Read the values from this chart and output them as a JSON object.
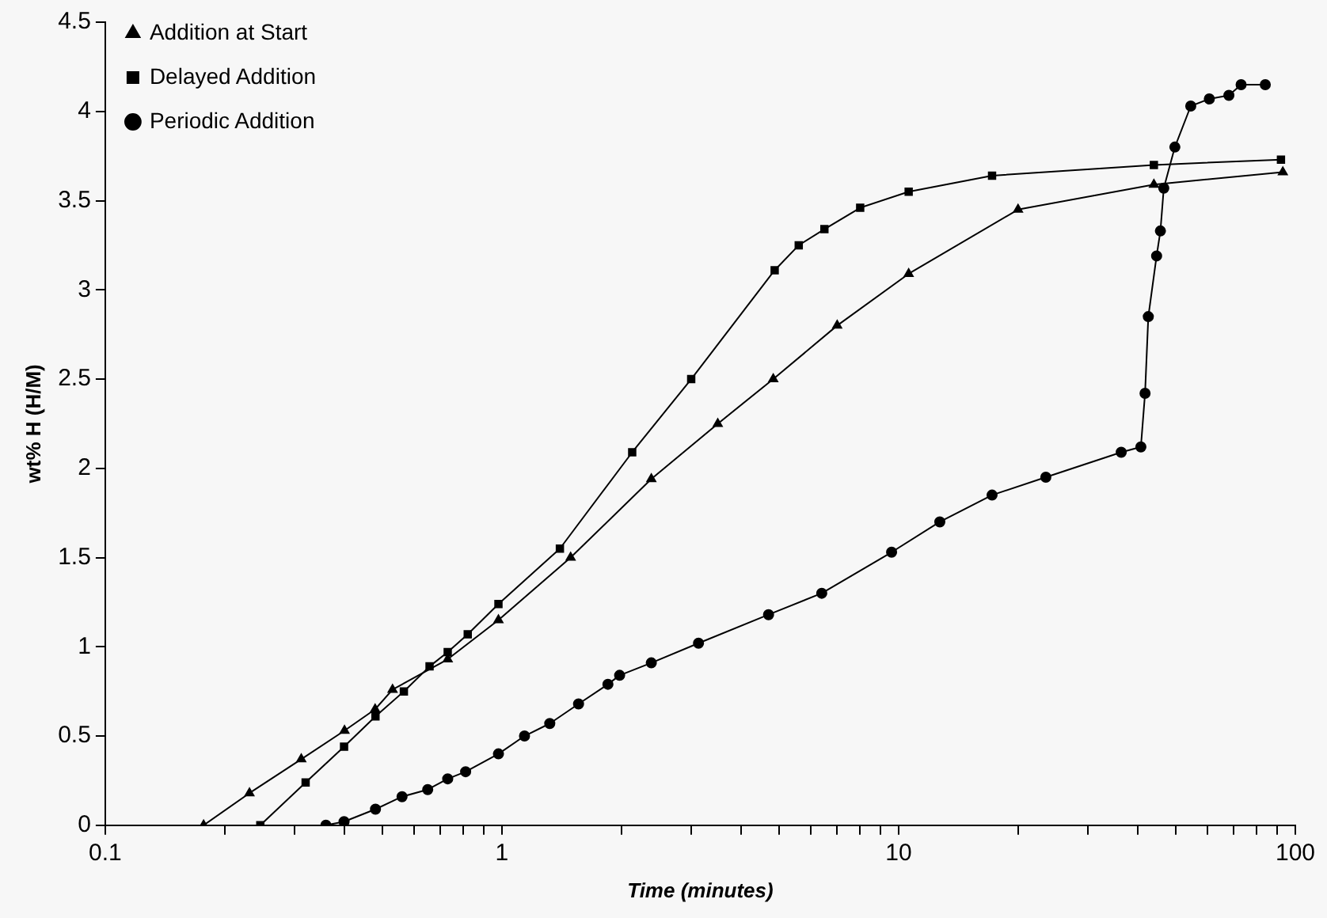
{
  "chart_data": {
    "type": "line",
    "xlabel": "Time (minutes)",
    "ylabel": "wt% H (H/M)",
    "log": "x",
    "grid": false,
    "legend": "top left",
    "line_style": "solid",
    "xlim": [
      0.1,
      100
    ],
    "ylim": [
      0,
      4.5
    ],
    "xticks": [
      0.1,
      {
        "value": 0.2,
        "label": null
      },
      {
        "value": 0.3,
        "label": null
      },
      {
        "value": 0.4,
        "label": null
      },
      {
        "value": 0.5,
        "label": null
      },
      {
        "value": 0.6,
        "label": null
      },
      {
        "value": 0.7,
        "label": null
      },
      {
        "value": 0.8,
        "label": null
      },
      {
        "value": 0.9,
        "label": null
      },
      1,
      {
        "value": 2,
        "label": null
      },
      {
        "value": 3,
        "label": null
      },
      {
        "value": 4,
        "label": null
      },
      {
        "value": 5,
        "label": null
      },
      {
        "value": 6,
        "label": null
      },
      {
        "value": 7,
        "label": null
      },
      {
        "value": 8,
        "label": null
      },
      {
        "value": 9,
        "label": null
      },
      10,
      {
        "value": 20,
        "label": null
      },
      {
        "value": 30,
        "label": null
      },
      {
        "value": 40,
        "label": null
      },
      {
        "value": 50,
        "label": null
      },
      {
        "value": 60,
        "label": null
      },
      {
        "value": 70,
        "label": null
      },
      {
        "value": 80,
        "label": null
      },
      {
        "value": 90,
        "label": null
      },
      100
    ],
    "yticks": [
      0,
      0.5,
      1,
      1.5,
      2,
      2.5,
      3,
      3.5,
      4,
      4.5
    ],
    "series": [
      {
        "name": "Addition at Start",
        "color": "#000000",
        "marker": "triangle",
        "x": [
          0.177,
          0.231,
          0.312,
          0.401,
          0.479,
          0.53,
          0.73,
          0.98,
          1.49,
          2.38,
          3.5,
          4.83,
          7,
          10.6,
          20,
          44,
          93
        ],
        "values": [
          0,
          0.18,
          0.37,
          0.53,
          0.65,
          0.76,
          0.93,
          1.15,
          1.5,
          1.94,
          2.25,
          2.5,
          2.8,
          3.09,
          3.45,
          3.59,
          3.66
        ]
      },
      {
        "name": "Delayed Addition",
        "color": "#000000",
        "marker": "square",
        "x": [
          0.246,
          0.32,
          0.4,
          0.48,
          0.566,
          0.657,
          0.73,
          0.82,
          0.98,
          1.4,
          2.13,
          3,
          4.87,
          5.6,
          6.5,
          8,
          10.6,
          17.2,
          44,
          92
        ],
        "values": [
          0,
          0.24,
          0.44,
          0.61,
          0.75,
          0.89,
          0.97,
          1.07,
          1.24,
          1.55,
          2.09,
          2.5,
          3.11,
          3.25,
          3.34,
          3.46,
          3.55,
          3.64,
          3.7,
          3.73
        ]
      },
      {
        "name": "Periodic Addition",
        "color": "#000000",
        "marker": "circle",
        "x": [
          0.36,
          0.4,
          0.48,
          0.56,
          0.65,
          0.73,
          0.81,
          0.98,
          1.14,
          1.32,
          1.56,
          1.85,
          1.98,
          2.38,
          3.13,
          4.7,
          6.4,
          9.6,
          12.7,
          17.2,
          23.5,
          36.4,
          40.8,
          41.8,
          42.6,
          44.7,
          45.7,
          46.6,
          49.7,
          54.5,
          60.7,
          68,
          73,
          84
        ],
        "values": [
          0,
          0.02,
          0.09,
          0.16,
          0.2,
          0.26,
          0.3,
          0.4,
          0.5,
          0.57,
          0.68,
          0.79,
          0.84,
          0.91,
          1.02,
          1.18,
          1.3,
          1.53,
          1.7,
          1.85,
          1.95,
          2.09,
          2.12,
          2.42,
          2.85,
          3.19,
          3.33,
          3.57,
          3.8,
          4.03,
          4.07,
          4.09,
          4.15,
          4.15
        ]
      }
    ]
  }
}
